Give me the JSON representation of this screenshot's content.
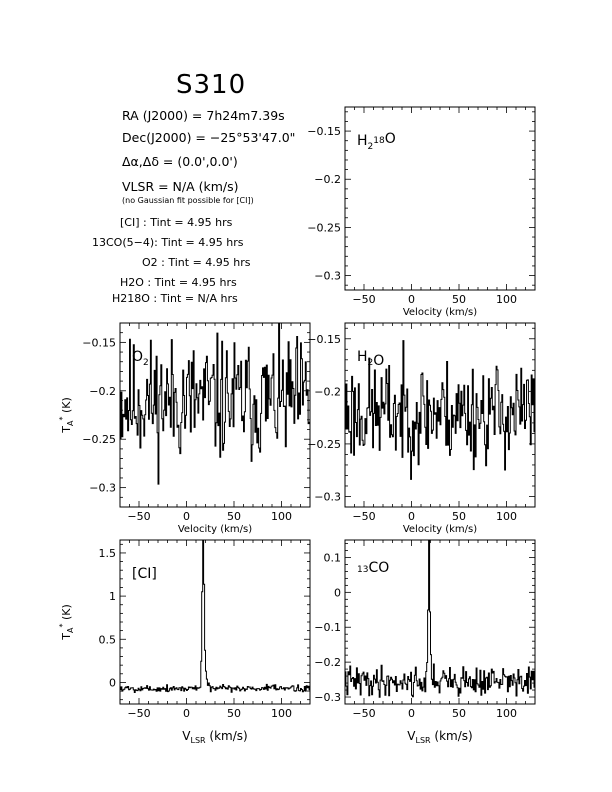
{
  "title": "S310",
  "info": {
    "ra": "RA (J2000)  =  7h24m7.39s",
    "dec": "Dec(J2000)  =  −25°53'47.0\"",
    "offset": "Δα,Δδ  =  (0.0',0.0')",
    "vlsr": "VLSR  = N/A  (km/s)",
    "note": "(no Gaussian fit possible for [CI])",
    "tint": [
      {
        "label": "[CI] : Tint = 4.95 hrs"
      },
      {
        "label": "13CO(5−4): Tint = 4.95 hrs"
      },
      {
        "label": "O2 : Tint = 4.95 hrs"
      },
      {
        "label": "H2O : Tint = 4.95 hrs"
      },
      {
        "label": "H218O : Tint = N/A  hrs"
      }
    ]
  },
  "chart_data": [
    {
      "type": "line",
      "panel": "H2-18O",
      "label": "H218O",
      "xlabel": "Velocity (km/s)",
      "ylabel": "",
      "xlim": [
        -70,
        130
      ],
      "ylim": [
        -0.315,
        -0.125
      ],
      "xticks": [
        -50,
        0,
        50,
        100
      ],
      "yticks": [
        -0.3,
        -0.25,
        -0.2,
        -0.15
      ],
      "series": []
    },
    {
      "type": "line",
      "panel": "O2",
      "label": "O2",
      "xlabel": "Velocity (km/s)",
      "ylabel": "TA* (K)",
      "xlim": [
        -70,
        130
      ],
      "ylim": [
        -0.32,
        -0.13
      ],
      "xticks": [
        -50,
        0,
        50,
        100
      ],
      "yticks": [
        -0.3,
        -0.25,
        -0.2,
        -0.15
      ],
      "noise": {
        "base": -0.21,
        "amp": 0.045,
        "seed": 11
      },
      "series": []
    },
    {
      "type": "line",
      "panel": "H2O",
      "label": "H2O",
      "xlabel": "Velocity (km/s)",
      "ylabel": "",
      "xlim": [
        -70,
        130
      ],
      "ylim": [
        -0.31,
        -0.135
      ],
      "xticks": [
        -50,
        0,
        50,
        100
      ],
      "yticks": [
        -0.3,
        -0.25,
        -0.2,
        -0.15
      ],
      "noise": {
        "base": -0.22,
        "amp": 0.035,
        "seed": 23
      },
      "series": []
    },
    {
      "type": "line",
      "panel": "CI",
      "label": "[CI]",
      "xlabel": "VLSR (km/s)",
      "ylabel": "TA* (K)",
      "xlim": [
        -70,
        130
      ],
      "ylim": [
        -0.25,
        1.65
      ],
      "xticks": [
        -50,
        0,
        50,
        100
      ],
      "yticks": [
        0,
        0.5,
        1,
        1.5
      ],
      "noise": {
        "base": -0.07,
        "amp": 0.03,
        "seed": 5
      },
      "peak": {
        "x": 17,
        "y": 1.6,
        "width": 1.6
      },
      "series": []
    },
    {
      "type": "line",
      "panel": "13CO",
      "label": "13CO",
      "xlabel": "VLSR (km/s)",
      "ylabel": "",
      "xlim": [
        -70,
        130
      ],
      "ylim": [
        -0.32,
        0.15
      ],
      "xticks": [
        -50,
        0,
        50,
        100
      ],
      "yticks": [
        -0.3,
        -0.2,
        -0.1,
        0,
        0.1
      ],
      "noise": {
        "base": -0.255,
        "amp": 0.03,
        "seed": 41
      },
      "peak": {
        "x": 18,
        "y": 0.13,
        "width": 1.2
      },
      "series": []
    }
  ]
}
